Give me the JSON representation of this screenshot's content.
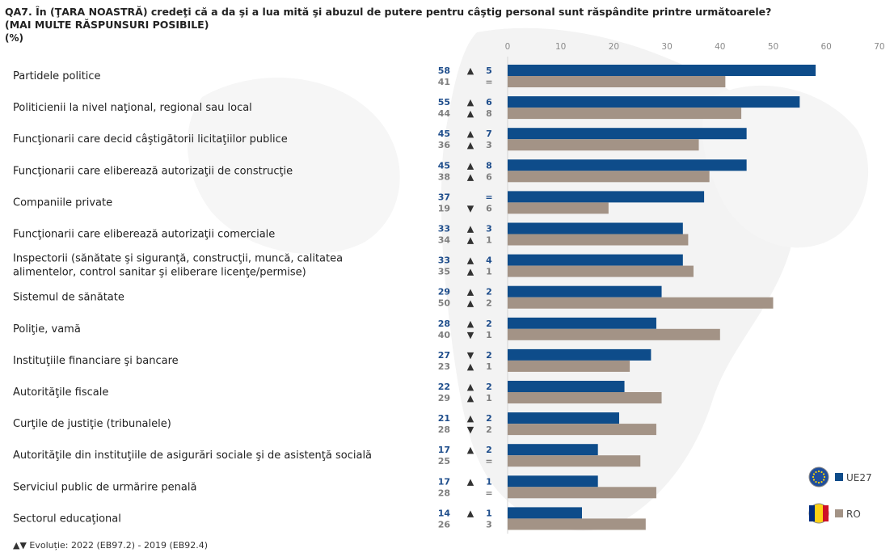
{
  "header": {
    "title": "QA7. În (ŢARA NOASTRĂ) credeţi că a da şi a lua mită şi abuzul de putere pentru câştig personal sunt răspândite printre următoarele?",
    "subtitle": "(MAI MULTE RĂSPUNSURI POSIBILE)",
    "unit": "(%)"
  },
  "footnote": "▲▼ Evoluție: 2022 (EB97.2) - 2019 (EB92.4)",
  "colors": {
    "eu": "#0e4c8a",
    "ro": "#a39386"
  },
  "chart_data": {
    "type": "bar",
    "orientation": "horizontal",
    "xlim": [
      0,
      70
    ],
    "xticks": [
      0,
      10,
      20,
      30,
      40,
      50,
      60,
      70
    ],
    "legend_position": "bottom-right",
    "categories": [
      [
        "Partidele politice"
      ],
      [
        "Politicienii la nivel naţional, regional sau local"
      ],
      [
        "Funcţionarii care decid câştigătorii licitaţiilor publice"
      ],
      [
        "Funcţionarii care eliberează autorizaţii de construcţie"
      ],
      [
        "Companiile private"
      ],
      [
        "Funcţionarii care eliberează autorizaţii comerciale"
      ],
      [
        "Inspectorii (sănătate şi siguranţă, construcţii, muncă, calitatea",
        "alimentelor, control sanitar şi eliberare licenţe/permise)"
      ],
      [
        "Sistemul de sănătate"
      ],
      [
        "Poliţie, vamă"
      ],
      [
        "Instituţiile financiare şi bancare"
      ],
      [
        "Autorităţile fiscale"
      ],
      [
        "Curţile de justiţie (tribunalele)"
      ],
      [
        "Autorităţile din instituţiile de asigurări sociale şi de asistenţă socială"
      ],
      [
        "Serviciul public de urmărire penală"
      ],
      [
        "Sectorul educaţional"
      ]
    ],
    "series": [
      {
        "name": "UE27",
        "values": [
          58,
          55,
          45,
          45,
          37,
          33,
          33,
          29,
          28,
          27,
          22,
          21,
          17,
          17,
          14
        ],
        "change_dir": [
          "▲",
          "▲",
          "▲",
          "▲",
          "",
          "▲",
          "▲",
          "▲",
          "▲",
          "▼",
          "▲",
          "▲",
          "▲",
          "▲",
          "▲"
        ],
        "change_val": [
          "5",
          "6",
          "7",
          "8",
          "=",
          "3",
          "4",
          "2",
          "2",
          "2",
          "2",
          "2",
          "2",
          "1",
          "1"
        ]
      },
      {
        "name": "RO",
        "values": [
          41,
          44,
          36,
          38,
          19,
          34,
          35,
          50,
          40,
          23,
          29,
          28,
          25,
          28,
          26
        ],
        "change_dir": [
          "",
          "▲",
          "▲",
          "▲",
          "▼",
          "▲",
          "▲",
          "▲",
          "▼",
          "▲",
          "▲",
          "▼",
          "",
          "",
          ""
        ],
        "change_val": [
          "=",
          "8",
          "3",
          "6",
          "6",
          "1",
          "1",
          "2",
          "1",
          "1",
          "1",
          "2",
          "=",
          "=",
          "3"
        ]
      }
    ]
  }
}
